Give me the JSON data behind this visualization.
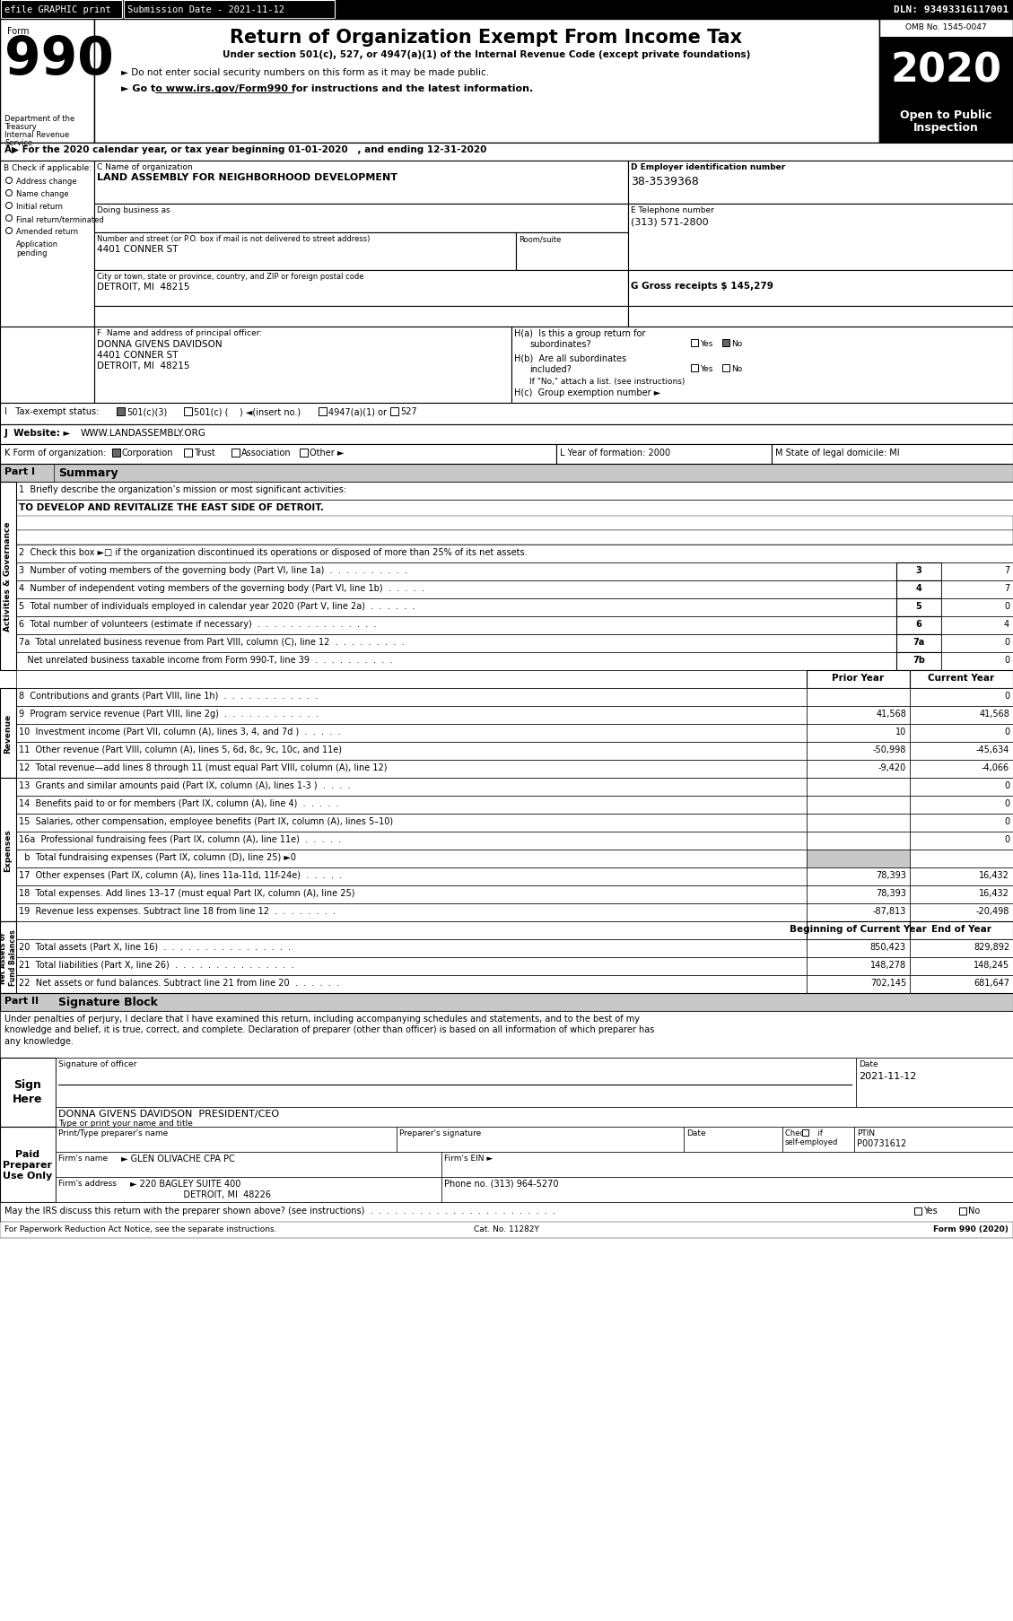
{
  "bg_color": "#ffffff",
  "header_efile": "efile GRAPHIC print",
  "header_submission": "Submission Date - 2021-11-12",
  "header_dln": "DLN: 93493316117001",
  "form_label": "Form",
  "form_number": "990",
  "title": "Return of Organization Exempt From Income Tax",
  "subtitle1": "Under section 501(c), 527, or 4947(a)(1) of the Internal Revenue Code (except private foundations)",
  "subtitle2": "► Do not enter social security numbers on this form as it may be made public.",
  "subtitle3": "► Go to www.irs.gov/Form990 for instructions and the latest information.",
  "dept1": "Department of the",
  "dept2": "Treasury",
  "dept3": "Internal Revenue",
  "dept4": "Service",
  "omb": "OMB No. 1545-0047",
  "year": "2020",
  "open_public": "Open to Public",
  "inspection": "Inspection",
  "row_A": "A▶ For the 2020 calendar year, or tax year beginning 01-01-2020   , and ending 12-31-2020",
  "check_label": "B Check if applicable:",
  "checks": [
    "Address change",
    "Name change",
    "Initial return",
    "Final return/terminated",
    "Amended return",
    "Application",
    "pending"
  ],
  "org_name_label": "C Name of organization",
  "org_name": "LAND ASSEMBLY FOR NEIGHBORHOOD DEVELOPMENT",
  "dba_label": "Doing business as",
  "street_label": "Number and street (or P.O. box if mail is not delivered to street address)",
  "room_label": "Room/suite",
  "street": "4401 CONNER ST",
  "city_label": "City or town, state or province, country, and ZIP or foreign postal code",
  "city": "DETROIT, MI  48215",
  "ein_label": "D Employer identification number",
  "ein": "38-3539368",
  "phone_label": "E Telephone number",
  "phone": "(313) 571-2800",
  "gross_label": "G Gross receipts $ 145,279",
  "principal_label": "F  Name and address of principal officer:",
  "principal_name": "DONNA GIVENS DAVIDSON",
  "principal_addr1": "4401 CONNER ST",
  "principal_addr2": "DETROIT, MI  48215",
  "ha_label": "H(a)  Is this a group return for",
  "ha_sub": "subordinates?",
  "hb_label": "H(b)  Are all subordinates",
  "hb_sub": "included?",
  "hb_note": "If \"No,\" attach a list. (see instructions)",
  "hc_label": "H(c)  Group exemption number ►",
  "tax_label": "I   Tax-exempt status:",
  "tax_501c3": "501(c)(3)",
  "tax_501c": "501(c) (    ) ◄(insert no.)",
  "tax_4947": "4947(a)(1) or",
  "tax_527": "527",
  "website_label": "J  Website: ►",
  "website": "WWW.LANDASSEMBLY.ORG",
  "form_org_label": "K Form of organization:",
  "form_corp": "Corporation",
  "form_trust": "Trust",
  "form_assoc": "Association",
  "form_other": "Other ►",
  "year_formed_label": "L Year of formation: 2000",
  "state_label": "M State of legal domicile: MI",
  "part1_label": "Part I",
  "part1_title": "Summary",
  "line1_q": "1  Briefly describe the organization’s mission or most significant activities:",
  "line1_a": "TO DEVELOP AND REVITALIZE THE EAST SIDE OF DETROIT.",
  "line2_q": "2  Check this box ►□ if the organization discontinued its operations or disposed of more than 25% of its net assets.",
  "line3_q": "3  Number of voting members of the governing body (Part VI, line 1a)  .  .  .  .  .  .  .  .  .  .",
  "line3_n": "3",
  "line3_v": "7",
  "line4_q": "4  Number of independent voting members of the governing body (Part VI, line 1b)  .  .  .  .  .",
  "line4_n": "4",
  "line4_v": "7",
  "line5_q": "5  Total number of individuals employed in calendar year 2020 (Part V, line 2a)  .  .  .  .  .  .",
  "line5_n": "5",
  "line5_v": "0",
  "line6_q": "6  Total number of volunteers (estimate if necessary)  .  .  .  .  .  .  .  .  .  .  .  .  .  .  .",
  "line6_n": "6",
  "line6_v": "4",
  "line7a_q": "7a  Total unrelated business revenue from Part VIII, column (C), line 12  .  .  .  .  .  .  .  .  .",
  "line7a_n": "7a",
  "line7a_v": "0",
  "line7b_q": "   Net unrelated business taxable income from Form 990-T, line 39  .  .  .  .  .  .  .  .  .  .",
  "line7b_n": "7b",
  "line7b_v": "0",
  "col_prior": "Prior Year",
  "col_current": "Current Year",
  "line8_q": "8  Contributions and grants (Part VIII, line 1h)  .  .  .  .  .  .  .  .  .  .  .  .",
  "line8_p": "",
  "line8_c": "0",
  "line9_q": "9  Program service revenue (Part VIII, line 2g)  .  .  .  .  .  .  .  .  .  .  .  .",
  "line9_p": "41,568",
  "line9_c": "41,568",
  "line10_q": "10  Investment income (Part VII, column (A), lines 3, 4, and 7d )  .  .  .  .  .",
  "line10_p": "10",
  "line10_c": "0",
  "line11_q": "11  Other revenue (Part VIII, column (A), lines 5, 6d, 8c, 9c, 10c, and 11e)",
  "line11_p": "-50,998",
  "line11_c": "-45,634",
  "line12_q": "12  Total revenue—add lines 8 through 11 (must equal Part VIII, column (A), line 12)",
  "line12_p": "-9,420",
  "line12_c": "-4,066",
  "line13_q": "13  Grants and similar amounts paid (Part IX, column (A), lines 1-3 )  .  .  .  .",
  "line13_p": "",
  "line13_c": "0",
  "line14_q": "14  Benefits paid to or for members (Part IX, column (A), line 4)  .  .  .  .  .",
  "line14_p": "",
  "line14_c": "0",
  "line15_q": "15  Salaries, other compensation, employee benefits (Part IX, column (A), lines 5–10)",
  "line15_p": "",
  "line15_c": "0",
  "line16a_q": "16a  Professional fundraising fees (Part IX, column (A), line 11e)  .  .  .  .  .",
  "line16a_p": "",
  "line16a_c": "0",
  "line16b_q": "  b  Total fundraising expenses (Part IX, column (D), line 25) ►0",
  "line17_q": "17  Other expenses (Part IX, column (A), lines 11a-11d, 11f-24e)  .  .  .  .  .",
  "line17_p": "78,393",
  "line17_c": "16,432",
  "line18_q": "18  Total expenses. Add lines 13–17 (must equal Part IX, column (A), line 25)",
  "line18_p": "78,393",
  "line18_c": "16,432",
  "line19_q": "19  Revenue less expenses. Subtract line 18 from line 12  .  .  .  .  .  .  .  .",
  "line19_p": "-87,813",
  "line19_c": "-20,498",
  "col_begin": "Beginning of Current Year",
  "col_end": "End of Year",
  "line20_q": "20  Total assets (Part X, line 16)  .  .  .  .  .  .  .  .  .  .  .  .  .  .  .  .",
  "line20_b": "850,423",
  "line20_e": "829,892",
  "line21_q": "21  Total liabilities (Part X, line 26)  .  .  .  .  .  .  .  .  .  .  .  .  .  .  .",
  "line21_b": "148,278",
  "line21_e": "148,245",
  "line22_q": "22  Net assets or fund balances. Subtract line 21 from line 20  .  .  .  .  .  .",
  "line22_b": "702,145",
  "line22_e": "681,647",
  "part2_label": "Part II",
  "part2_title": "Signature Block",
  "sig_text": "Under penalties of perjury, I declare that I have examined this return, including accompanying schedules and statements, and to the best of my\nknowledge and belief, it is true, correct, and complete. Declaration of preparer (other than officer) is based on all information of which preparer has\nany knowledge.",
  "sig_date": "2021-11-12",
  "sig_label": "Signature of officer",
  "sig_date_label": "Date",
  "sig_name": "DONNA GIVENS DAVIDSON  PRESIDENT/CEO",
  "sig_name_label": "Type or print your name and title",
  "prep_name_label": "Print/Type preparer's name",
  "prep_sig_label": "Preparer's signature",
  "prep_date_label": "Date",
  "prep_ptin_label": "PTIN",
  "prep_ptin": "P00731612",
  "prep_firm_label": "Firm's name",
  "prep_firm": "► GLEN OLIVACHE CPA PC",
  "prep_ein_label": "Firm's EIN ►",
  "prep_addr_label": "Firm's address",
  "prep_addr": "► 220 BAGLEY SUITE 400",
  "prep_city": "DETROIT, MI  48226",
  "prep_phone_label": "Phone no. (313) 964-5270",
  "discuss_q": "May the IRS discuss this return with the preparer shown above? (see instructions)  .  .  .  .  .  .  .  .  .  .  .  .  .  .  .  .  .  .  .  .  .  .  .",
  "footer1": "For Paperwork Reduction Act Notice, see the separate instructions.",
  "footer2": "Cat. No. 11282Y",
  "footer3": "Form 990 (2020)"
}
